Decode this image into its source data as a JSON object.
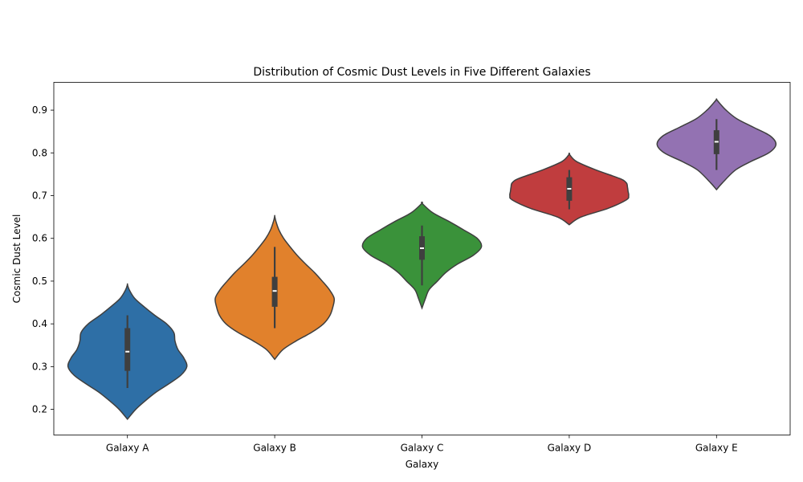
{
  "chart_data": {
    "type": "violin",
    "title": "Distribution of Cosmic Dust Levels in Five Different Galaxies",
    "xlabel": "Galaxy",
    "ylabel": "Cosmic Dust Level",
    "ylim": [
      0.14,
      0.965
    ],
    "yticks": [
      0.2,
      0.3,
      0.4,
      0.5,
      0.6,
      0.7,
      0.8,
      0.9
    ],
    "ytick_labels": [
      "0.2",
      "0.3",
      "0.4",
      "0.5",
      "0.6",
      "0.7",
      "0.8",
      "0.9"
    ],
    "grid": false,
    "categories": [
      "Galaxy A",
      "Galaxy B",
      "Galaxy C",
      "Galaxy D",
      "Galaxy E"
    ],
    "series": [
      {
        "category": "Galaxy A",
        "color": "#2e6fa6",
        "min": 0.25,
        "q1": 0.29,
        "median": 0.335,
        "q3": 0.39,
        "max": 0.42,
        "density": [
          [
            0.177,
            0
          ],
          [
            0.2,
            0.14
          ],
          [
            0.22,
            0.3
          ],
          [
            0.24,
            0.48
          ],
          [
            0.26,
            0.7
          ],
          [
            0.28,
            0.9
          ],
          [
            0.3,
            1.0
          ],
          [
            0.32,
            0.95
          ],
          [
            0.34,
            0.85
          ],
          [
            0.36,
            0.8
          ],
          [
            0.38,
            0.78
          ],
          [
            0.4,
            0.66
          ],
          [
            0.42,
            0.46
          ],
          [
            0.44,
            0.28
          ],
          [
            0.46,
            0.12
          ],
          [
            0.48,
            0.03
          ],
          [
            0.492,
            0
          ]
        ]
      },
      {
        "category": "Galaxy B",
        "color": "#e1812c",
        "min": 0.39,
        "q1": 0.44,
        "median": 0.477,
        "q3": 0.51,
        "max": 0.58,
        "density": [
          [
            0.317,
            0
          ],
          [
            0.34,
            0.14
          ],
          [
            0.36,
            0.36
          ],
          [
            0.38,
            0.62
          ],
          [
            0.4,
            0.82
          ],
          [
            0.42,
            0.93
          ],
          [
            0.44,
            0.98
          ],
          [
            0.46,
            1.0
          ],
          [
            0.48,
            0.92
          ],
          [
            0.5,
            0.8
          ],
          [
            0.52,
            0.67
          ],
          [
            0.54,
            0.52
          ],
          [
            0.56,
            0.38
          ],
          [
            0.58,
            0.26
          ],
          [
            0.6,
            0.15
          ],
          [
            0.62,
            0.07
          ],
          [
            0.64,
            0.02
          ],
          [
            0.652,
            0
          ]
        ]
      },
      {
        "category": "Galaxy C",
        "color": "#3a923a",
        "min": 0.49,
        "q1": 0.55,
        "median": 0.577,
        "q3": 0.605,
        "max": 0.63,
        "density": [
          [
            0.437,
            0
          ],
          [
            0.46,
            0.06
          ],
          [
            0.48,
            0.12
          ],
          [
            0.5,
            0.26
          ],
          [
            0.52,
            0.4
          ],
          [
            0.54,
            0.6
          ],
          [
            0.56,
            0.86
          ],
          [
            0.58,
            1.0
          ],
          [
            0.6,
            0.93
          ],
          [
            0.62,
            0.7
          ],
          [
            0.64,
            0.45
          ],
          [
            0.66,
            0.18
          ],
          [
            0.682,
            0
          ]
        ]
      },
      {
        "category": "Galaxy D",
        "color": "#c03d3e",
        "min": 0.668,
        "q1": 0.688,
        "median": 0.716,
        "q3": 0.743,
        "max": 0.76,
        "density": [
          [
            0.632,
            0
          ],
          [
            0.65,
            0.2
          ],
          [
            0.67,
            0.65
          ],
          [
            0.69,
            0.96
          ],
          [
            0.7,
            1.0
          ],
          [
            0.71,
            0.99
          ],
          [
            0.72,
            0.98
          ],
          [
            0.73,
            0.96
          ],
          [
            0.74,
            0.85
          ],
          [
            0.76,
            0.45
          ],
          [
            0.78,
            0.12
          ],
          [
            0.797,
            0
          ]
        ]
      },
      {
        "category": "Galaxy E",
        "color": "#9372b2",
        "min": 0.76,
        "q1": 0.797,
        "median": 0.826,
        "q3": 0.853,
        "max": 0.879,
        "density": [
          [
            0.714,
            0
          ],
          [
            0.73,
            0.1
          ],
          [
            0.76,
            0.32
          ],
          [
            0.78,
            0.58
          ],
          [
            0.8,
            0.88
          ],
          [
            0.82,
            1.0
          ],
          [
            0.84,
            0.9
          ],
          [
            0.86,
            0.62
          ],
          [
            0.88,
            0.34
          ],
          [
            0.9,
            0.16
          ],
          [
            0.915,
            0.06
          ],
          [
            0.925,
            0
          ]
        ]
      }
    ]
  }
}
